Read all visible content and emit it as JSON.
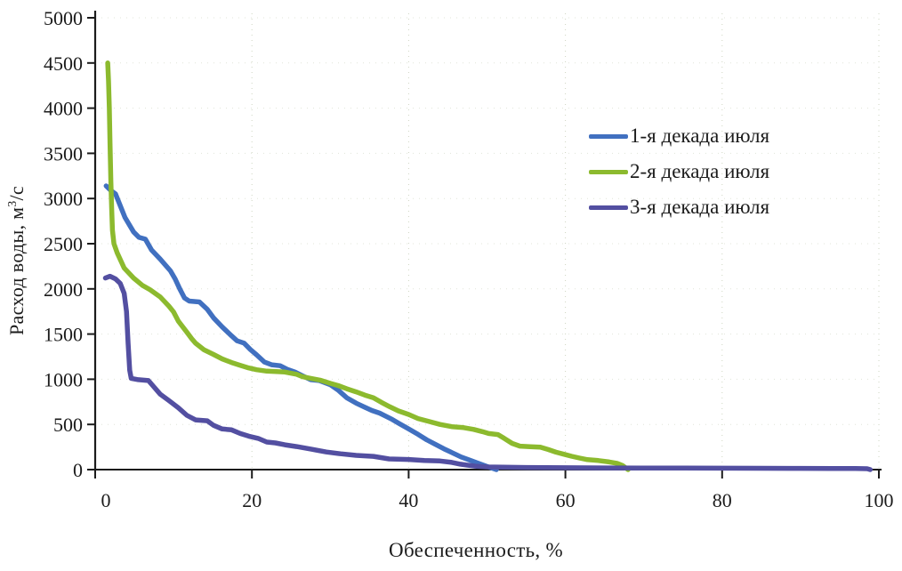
{
  "chart_data": {
    "type": "line",
    "title": "",
    "xlabel": "Обеспеченность, %",
    "ylabel": "Расход воды, м³/с",
    "ylabel_prefix": "Расход воды, м",
    "ylabel_sup": "3",
    "ylabel_suffix": "/с",
    "xlim": [
      0,
      100
    ],
    "ylim": [
      0,
      5000
    ],
    "x_ticks": [
      0,
      20,
      40,
      60,
      80,
      100
    ],
    "y_ticks": [
      0,
      500,
      1000,
      1500,
      2000,
      2500,
      3000,
      3500,
      4000,
      4500,
      5000
    ],
    "grid": "faint dotted gridlines at each tick",
    "grid_color": "#c3cbb4",
    "axis_color": "#1c1c1c",
    "legend_position": "inside upper right",
    "series": [
      {
        "id": "decade-1-july",
        "name": "1-я декада июля",
        "color": "#4170C0",
        "points": [
          [
            1.4,
            3140
          ],
          [
            2.0,
            3090
          ],
          [
            2.6,
            3050
          ],
          [
            3.2,
            2920
          ],
          [
            3.8,
            2790
          ],
          [
            4.9,
            2630
          ],
          [
            5.6,
            2570
          ],
          [
            6.4,
            2550
          ],
          [
            7.2,
            2430
          ],
          [
            8.3,
            2330
          ],
          [
            9.0,
            2260
          ],
          [
            9.6,
            2200
          ],
          [
            10.2,
            2110
          ],
          [
            10.8,
            2000
          ],
          [
            11.4,
            1900
          ],
          [
            12.0,
            1865
          ],
          [
            13.3,
            1855
          ],
          [
            14.3,
            1775
          ],
          [
            15.1,
            1680
          ],
          [
            16.2,
            1580
          ],
          [
            17.4,
            1480
          ],
          [
            18.1,
            1425
          ],
          [
            19.0,
            1400
          ],
          [
            19.8,
            1330
          ],
          [
            20.6,
            1270
          ],
          [
            21.6,
            1190
          ],
          [
            22.5,
            1160
          ],
          [
            23.6,
            1150
          ],
          [
            24.5,
            1110
          ],
          [
            25.5,
            1080
          ],
          [
            26.4,
            1040
          ],
          [
            27.5,
            995
          ],
          [
            28.6,
            985
          ],
          [
            30.0,
            940
          ],
          [
            31.0,
            880
          ],
          [
            32.1,
            795
          ],
          [
            33.3,
            735
          ],
          [
            34.4,
            690
          ],
          [
            35.3,
            655
          ],
          [
            36.3,
            625
          ],
          [
            37.1,
            590
          ],
          [
            37.9,
            555
          ],
          [
            38.8,
            510
          ],
          [
            40.0,
            450
          ],
          [
            41.2,
            390
          ],
          [
            42.3,
            330
          ],
          [
            43.4,
            280
          ],
          [
            44.5,
            230
          ],
          [
            45.6,
            185
          ],
          [
            46.7,
            140
          ],
          [
            47.8,
            105
          ],
          [
            48.9,
            70
          ],
          [
            50.0,
            35
          ],
          [
            51.2,
            0
          ]
        ]
      },
      {
        "id": "decade-2-july",
        "name": "2-я декада июля",
        "color": "#8CBA2E",
        "points": [
          [
            1.6,
            4500
          ],
          [
            1.7,
            4300
          ],
          [
            1.8,
            4000
          ],
          [
            1.9,
            3600
          ],
          [
            2.0,
            3200
          ],
          [
            2.1,
            2900
          ],
          [
            2.2,
            2650
          ],
          [
            2.4,
            2500
          ],
          [
            2.8,
            2400
          ],
          [
            3.7,
            2230
          ],
          [
            4.9,
            2120
          ],
          [
            6.0,
            2040
          ],
          [
            7.0,
            1990
          ],
          [
            8.3,
            1910
          ],
          [
            9.4,
            1810
          ],
          [
            10.0,
            1745
          ],
          [
            10.6,
            1645
          ],
          [
            11.7,
            1520
          ],
          [
            12.3,
            1450
          ],
          [
            12.8,
            1400
          ],
          [
            13.9,
            1325
          ],
          [
            15.1,
            1275
          ],
          [
            16.2,
            1225
          ],
          [
            17.4,
            1185
          ],
          [
            18.5,
            1155
          ],
          [
            19.6,
            1125
          ],
          [
            20.6,
            1105
          ],
          [
            21.9,
            1090
          ],
          [
            23.1,
            1085
          ],
          [
            24.2,
            1080
          ],
          [
            25.7,
            1055
          ],
          [
            26.4,
            1030
          ],
          [
            27.5,
            1010
          ],
          [
            28.7,
            990
          ],
          [
            30.0,
            955
          ],
          [
            31.0,
            930
          ],
          [
            32.1,
            895
          ],
          [
            33.3,
            860
          ],
          [
            34.4,
            825
          ],
          [
            35.5,
            795
          ],
          [
            36.5,
            745
          ],
          [
            37.6,
            695
          ],
          [
            38.7,
            650
          ],
          [
            40.0,
            610
          ],
          [
            41.2,
            565
          ],
          [
            42.5,
            535
          ],
          [
            44.0,
            500
          ],
          [
            45.5,
            475
          ],
          [
            47.0,
            465
          ],
          [
            48.3,
            445
          ],
          [
            49.4,
            420
          ],
          [
            50.2,
            400
          ],
          [
            51.4,
            388
          ],
          [
            52.2,
            345
          ],
          [
            53.2,
            290
          ],
          [
            54.2,
            260
          ],
          [
            55.5,
            253
          ],
          [
            56.8,
            248
          ],
          [
            57.8,
            222
          ],
          [
            58.8,
            193
          ],
          [
            59.8,
            170
          ],
          [
            60.8,
            148
          ],
          [
            61.8,
            128
          ],
          [
            62.8,
            110
          ],
          [
            64.2,
            100
          ],
          [
            65.6,
            85
          ],
          [
            66.6,
            70
          ],
          [
            67.3,
            45
          ],
          [
            68.0,
            0
          ]
        ]
      },
      {
        "id": "decade-3-july",
        "name": "3-я декада июля",
        "color": "#534FA1",
        "points": [
          [
            1.3,
            2120
          ],
          [
            1.9,
            2140
          ],
          [
            2.6,
            2110
          ],
          [
            3.2,
            2060
          ],
          [
            3.7,
            1950
          ],
          [
            4.0,
            1750
          ],
          [
            4.2,
            1400
          ],
          [
            4.4,
            1100
          ],
          [
            4.6,
            1010
          ],
          [
            5.5,
            995
          ],
          [
            6.8,
            985
          ],
          [
            7.3,
            935
          ],
          [
            8.3,
            835
          ],
          [
            9.4,
            765
          ],
          [
            10.6,
            685
          ],
          [
            11.7,
            600
          ],
          [
            12.8,
            550
          ],
          [
            14.3,
            540
          ],
          [
            15.1,
            490
          ],
          [
            16.2,
            450
          ],
          [
            17.4,
            440
          ],
          [
            18.5,
            400
          ],
          [
            19.6,
            370
          ],
          [
            20.8,
            345
          ],
          [
            21.9,
            305
          ],
          [
            23.0,
            295
          ],
          [
            24.2,
            275
          ],
          [
            25.7,
            255
          ],
          [
            27.6,
            225
          ],
          [
            29.5,
            195
          ],
          [
            31.3,
            175
          ],
          [
            33.3,
            157
          ],
          [
            35.5,
            147
          ],
          [
            37.5,
            118
          ],
          [
            40.0,
            112
          ],
          [
            42.0,
            100
          ],
          [
            44.0,
            95
          ],
          [
            45.5,
            80
          ],
          [
            46.6,
            60
          ],
          [
            47.4,
            50
          ],
          [
            48.5,
            38
          ],
          [
            50.0,
            30
          ],
          [
            52.0,
            27
          ],
          [
            55.0,
            24
          ],
          [
            60.0,
            21
          ],
          [
            65.0,
            19
          ],
          [
            70.0,
            18
          ],
          [
            75.0,
            17
          ],
          [
            80.0,
            16
          ],
          [
            85.0,
            15
          ],
          [
            90.0,
            14
          ],
          [
            94.0,
            13
          ],
          [
            97.0,
            12
          ],
          [
            98.5,
            10
          ],
          [
            98.9,
            0
          ]
        ]
      }
    ]
  }
}
